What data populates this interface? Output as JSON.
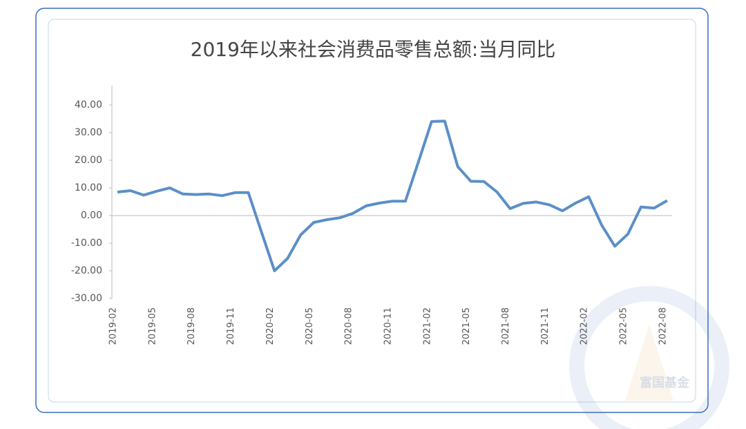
{
  "chart_data": {
    "type": "line",
    "title": "2019年以来社会消费品零售总额:当月同比",
    "categories": [
      "2019-02",
      null,
      null,
      "2019-05",
      null,
      null,
      "2019-08",
      null,
      null,
      "2019-11",
      null,
      null,
      "2020-02",
      null,
      null,
      "2020-05",
      null,
      null,
      "2020-08",
      null,
      null,
      "2020-11",
      null,
      null,
      "2021-02",
      null,
      null,
      "2021-05",
      null,
      null,
      "2021-08",
      null,
      null,
      "2021-11",
      null,
      null,
      "2022-02",
      null,
      null,
      "2022-05",
      null,
      null,
      "2022-08"
    ],
    "series": [
      {
        "name": "社会消费品零售总额:当月同比",
        "color": "#5b8fc7",
        "values": [
          8.5,
          9.0,
          7.4,
          8.8,
          10.0,
          7.8,
          7.6,
          7.8,
          7.2,
          8.3,
          8.3,
          -5.9,
          -20.0,
          -15.5,
          -7.0,
          -2.5,
          -1.5,
          -0.8,
          0.8,
          3.5,
          4.5,
          5.2,
          5.2,
          19.5,
          34.0,
          34.2,
          17.7,
          12.4,
          12.3,
          8.5,
          2.5,
          4.4,
          4.9,
          3.9,
          1.7,
          4.5,
          6.8,
          -3.5,
          -11.1,
          -6.7,
          3.1,
          2.7,
          5.4
        ]
      }
    ],
    "ylim": [
      -30,
      40
    ],
    "yticks": [
      {
        "value": -30,
        "label": "-30.00"
      },
      {
        "value": -20,
        "label": "-20.00"
      },
      {
        "value": -10,
        "label": "-10.00"
      },
      {
        "value": 0,
        "label": "0.00"
      },
      {
        "value": 10,
        "label": "10.00"
      },
      {
        "value": 20,
        "label": "20.00"
      },
      {
        "value": 30,
        "label": "30.00"
      },
      {
        "value": 40,
        "label": "40.00"
      }
    ],
    "grid": false,
    "watermark": "富国基金"
  }
}
